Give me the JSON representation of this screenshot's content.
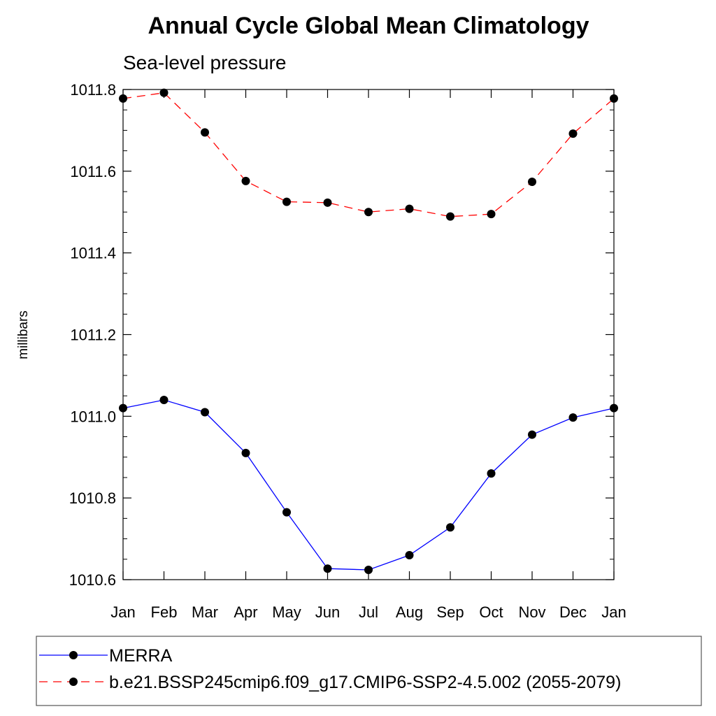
{
  "chart_data": {
    "type": "line",
    "title": "Annual Cycle Global Mean Climatology",
    "subtitle": "Sea-level pressure",
    "ylabel": "millibars",
    "xlabel": "",
    "categories": [
      "Jan",
      "Feb",
      "Mar",
      "Apr",
      "May",
      "Jun",
      "Jul",
      "Aug",
      "Sep",
      "Oct",
      "Nov",
      "Dec",
      "Jan"
    ],
    "ylim": [
      1010.6,
      1011.8
    ],
    "yticks": [
      {
        "value": 1010.6,
        "label": "1010.6"
      },
      {
        "value": 1010.8,
        "label": "1010.8"
      },
      {
        "value": 1011.0,
        "label": "1011.0"
      },
      {
        "value": 1011.2,
        "label": "1011.2"
      },
      {
        "value": 1011.4,
        "label": "1011.4"
      },
      {
        "value": 1011.6,
        "label": "1011.6"
      },
      {
        "value": 1011.8,
        "label": "1011.8"
      }
    ],
    "legend_position": "bottom",
    "grid": false,
    "series": [
      {
        "name": "MERRA",
        "color": "#0000ff",
        "line_style": "solid",
        "marker": "filled-circle",
        "values": [
          1011.02,
          1011.04,
          1011.01,
          1010.91,
          1010.765,
          1010.627,
          1010.624,
          1010.66,
          1010.728,
          1010.86,
          1010.955,
          1010.997,
          1011.02
        ]
      },
      {
        "name": "b.e21.BSSP245cmip6.f09_g17.CMIP6-SSP2-4.5.002 (2055-2079)",
        "color": "#ff0000",
        "line_style": "dashed",
        "marker": "filled-circle",
        "values": [
          1011.778,
          1011.792,
          1011.695,
          1011.576,
          1011.525,
          1011.523,
          1011.5,
          1011.508,
          1011.489,
          1011.495,
          1011.574,
          1011.692,
          1011.778
        ]
      }
    ]
  }
}
